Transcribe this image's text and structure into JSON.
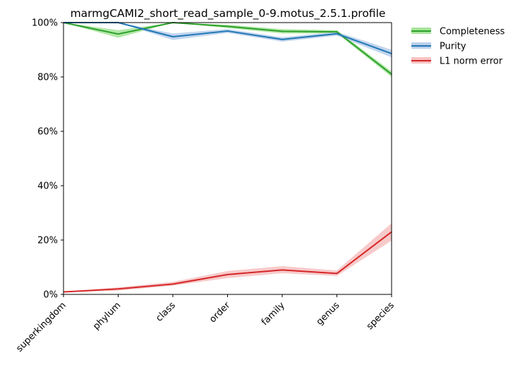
{
  "chart_data": {
    "type": "line",
    "title": "marmgCAMI2_short_read_sample_0-9.motus_2.5.1.profile",
    "xlabel": "",
    "ylabel": "",
    "categories": [
      "superkingdom",
      "phylum",
      "class",
      "order",
      "family",
      "genus",
      "species"
    ],
    "ylim": [
      0,
      100
    ],
    "yticks": [
      "0%",
      "20%",
      "40%",
      "60%",
      "80%",
      "100%"
    ],
    "grid": false,
    "legend_position": "outside-top-right",
    "series": [
      {
        "name": "Completeness",
        "color": "#2ca02c",
        "band_color": "#98df8a",
        "values": [
          100,
          95.8,
          100,
          98.6,
          96.8,
          96.6,
          81.0
        ],
        "lower": [
          100,
          94.4,
          100,
          98.0,
          96.0,
          96.0,
          80.0
        ],
        "upper": [
          100,
          97.2,
          100,
          99.2,
          97.6,
          97.2,
          82.0
        ]
      },
      {
        "name": "Purity",
        "color": "#1f77b4",
        "band_color": "#aec7e8",
        "values": [
          100,
          100,
          94.8,
          96.9,
          93.8,
          95.9,
          88.6
        ],
        "lower": [
          100,
          100,
          93.6,
          96.2,
          93.0,
          95.2,
          87.2
        ],
        "upper": [
          100,
          100,
          96.0,
          97.6,
          94.6,
          96.6,
          90.0
        ]
      },
      {
        "name": "L1 norm error",
        "color": "#d62728",
        "band_color": "#f4b8b8",
        "values": [
          0.9,
          2.0,
          3.8,
          7.3,
          9.0,
          7.7,
          23.0
        ],
        "lower": [
          0.8,
          1.4,
          3.2,
          6.0,
          7.8,
          6.8,
          19.8
        ],
        "upper": [
          1.0,
          2.6,
          4.6,
          8.6,
          10.4,
          8.8,
          26.2
        ]
      }
    ]
  }
}
